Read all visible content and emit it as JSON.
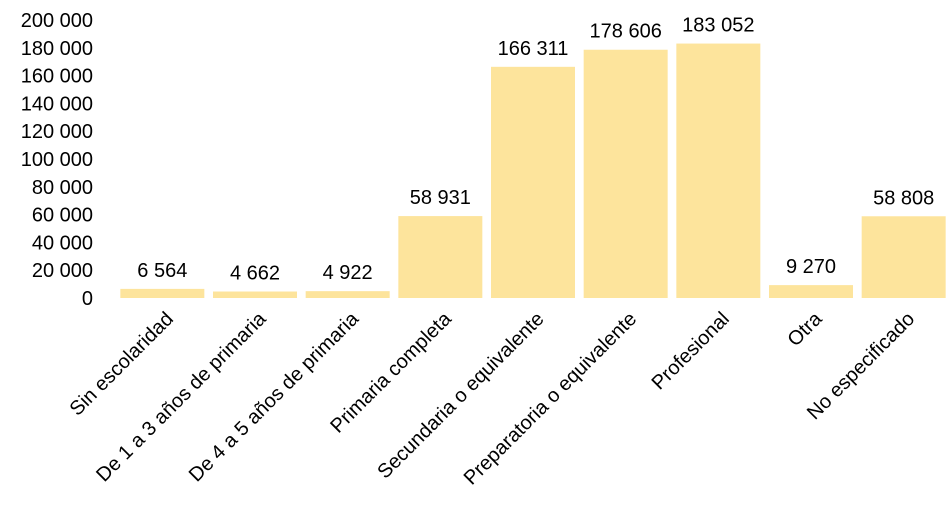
{
  "chart_data": {
    "type": "bar",
    "categories": [
      "Sin escolaridad",
      "De 1 a 3 años de primaria",
      "De 4 a 5 años de primaria",
      "Primaria completa",
      "Secundaria o equivalente",
      "Preparatoria o equivalente",
      "Profesional",
      "Otra",
      "No especificado"
    ],
    "values": [
      6564,
      4662,
      4922,
      58931,
      166311,
      178606,
      183052,
      9270,
      58808
    ],
    "value_labels": [
      "6 564",
      "4 662",
      "4 922",
      "58 931",
      "166 311",
      "178 606",
      "183 052",
      "9 270",
      "58 808"
    ],
    "ylim": [
      0,
      200000
    ],
    "yticks": [
      0,
      20000,
      40000,
      60000,
      80000,
      100000,
      120000,
      140000,
      160000,
      180000,
      200000
    ],
    "ytick_labels": [
      "0",
      "20 000",
      "40 000",
      "60 000",
      "80 000",
      "100 000",
      "120 000",
      "140 000",
      "160 000",
      "180 000",
      "200 000"
    ],
    "bar_color": "#FDE49C",
    "grid": false,
    "legend": "none"
  }
}
